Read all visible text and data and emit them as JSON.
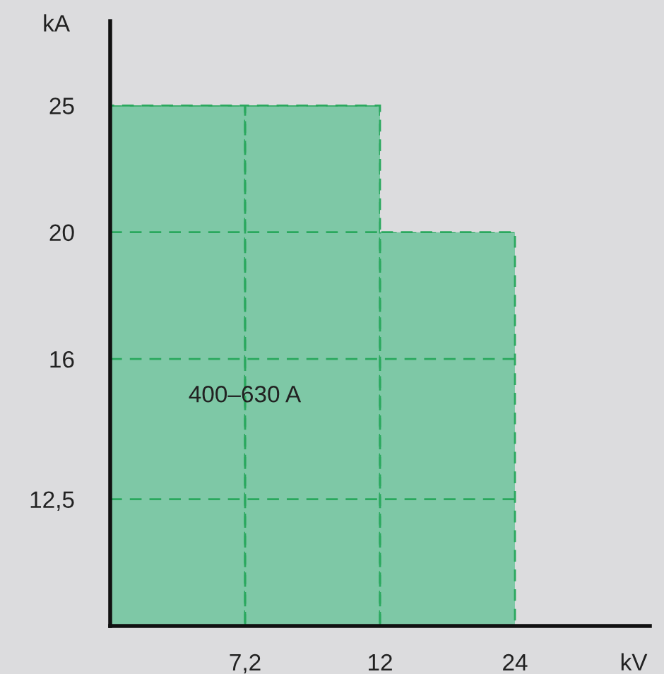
{
  "chart_data": {
    "type": "bar",
    "xlabel": "kV",
    "ylabel": "kA",
    "categories": [
      "7,2",
      "12",
      "24"
    ],
    "values": [
      25,
      25,
      20
    ],
    "color": "#7ec8a6",
    "log": "y",
    "ylim": [
      10,
      29
    ],
    "yticks": [
      {
        "value": 12.5,
        "label": "12,5"
      },
      16,
      20,
      25
    ],
    "grid": true,
    "line_style": "dashed",
    "annotations": [
      "400–630 A"
    ]
  }
}
